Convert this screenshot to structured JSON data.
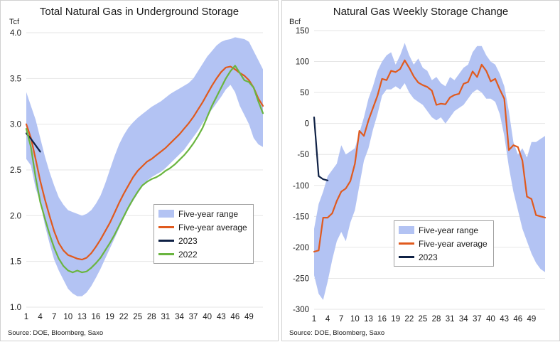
{
  "source_text": "Source: DOE, Bloomberg, Saxo",
  "colors": {
    "band": "#b3c3f3",
    "average": "#e05a1e",
    "y2023": "#0f2145",
    "y2022": "#6ab540",
    "grid": "#e6e6e6"
  },
  "chart_data": [
    {
      "type": "line",
      "title": "Total Natural Gas in Underground Storage",
      "ylabel": "Tcf",
      "ylim": [
        1.0,
        4.0
      ],
      "yticks": [
        "1.0",
        "1.5",
        "2.0",
        "2.5",
        "3.0",
        "3.5",
        "4.0"
      ],
      "xlim": [
        1,
        52
      ],
      "xticks": [
        "1",
        "4",
        "7",
        "10",
        "13",
        "16",
        "19",
        "22",
        "25",
        "28",
        "31",
        "34",
        "37",
        "40",
        "43",
        "46",
        "49"
      ],
      "grid": true,
      "legend_position": "lower-right",
      "series": [
        {
          "name": "Five-year range",
          "kind": "band",
          "x": [
            1,
            2,
            3,
            4,
            5,
            6,
            7,
            8,
            9,
            10,
            11,
            12,
            13,
            14,
            15,
            16,
            17,
            18,
            19,
            20,
            21,
            22,
            23,
            24,
            25,
            26,
            27,
            28,
            29,
            30,
            31,
            32,
            33,
            34,
            35,
            36,
            37,
            38,
            39,
            40,
            41,
            42,
            43,
            44,
            45,
            46,
            47,
            48,
            49,
            50,
            51,
            52
          ],
          "lower": [
            2.62,
            2.55,
            2.3,
            2.15,
            1.9,
            1.7,
            1.52,
            1.4,
            1.3,
            1.2,
            1.15,
            1.12,
            1.12,
            1.16,
            1.23,
            1.32,
            1.42,
            1.53,
            1.64,
            1.75,
            1.86,
            1.97,
            2.07,
            2.16,
            2.24,
            2.32,
            2.38,
            2.42,
            2.45,
            2.48,
            2.52,
            2.57,
            2.62,
            2.67,
            2.72,
            2.79,
            2.86,
            2.93,
            3.01,
            3.09,
            3.16,
            3.23,
            3.3,
            3.38,
            3.43,
            3.35,
            3.2,
            3.1,
            3.0,
            2.85,
            2.78,
            2.75
          ],
          "upper": [
            3.35,
            3.2,
            3.05,
            2.85,
            2.65,
            2.48,
            2.33,
            2.2,
            2.12,
            2.06,
            2.04,
            2.02,
            2.0,
            2.02,
            2.06,
            2.13,
            2.22,
            2.35,
            2.5,
            2.65,
            2.78,
            2.88,
            2.96,
            3.02,
            3.07,
            3.11,
            3.15,
            3.19,
            3.22,
            3.25,
            3.29,
            3.33,
            3.36,
            3.39,
            3.42,
            3.45,
            3.5,
            3.58,
            3.66,
            3.74,
            3.8,
            3.86,
            3.9,
            3.92,
            3.93,
            3.95,
            3.94,
            3.93,
            3.9,
            3.8,
            3.7,
            3.6
          ]
        },
        {
          "name": "Five-year average",
          "kind": "line",
          "x": [
            1,
            2,
            3,
            4,
            5,
            6,
            7,
            8,
            9,
            10,
            11,
            12,
            13,
            14,
            15,
            16,
            17,
            18,
            19,
            20,
            21,
            22,
            23,
            24,
            25,
            26,
            27,
            28,
            29,
            30,
            31,
            32,
            33,
            34,
            35,
            36,
            37,
            38,
            39,
            40,
            41,
            42,
            43,
            44,
            45,
            46,
            47,
            48,
            49,
            50,
            51,
            52
          ],
          "values": [
            3.0,
            2.85,
            2.62,
            2.38,
            2.18,
            2.0,
            1.83,
            1.7,
            1.62,
            1.57,
            1.55,
            1.53,
            1.52,
            1.54,
            1.59,
            1.66,
            1.74,
            1.83,
            1.92,
            2.03,
            2.14,
            2.24,
            2.33,
            2.42,
            2.49,
            2.54,
            2.59,
            2.62,
            2.66,
            2.7,
            2.74,
            2.79,
            2.84,
            2.89,
            2.95,
            3.01,
            3.08,
            3.16,
            3.24,
            3.33,
            3.42,
            3.5,
            3.57,
            3.62,
            3.63,
            3.6,
            3.56,
            3.53,
            3.48,
            3.4,
            3.28,
            3.2
          ]
        },
        {
          "name": "2023",
          "kind": "line",
          "x": [
            1,
            2,
            3,
            4
          ],
          "values": [
            2.9,
            2.84,
            2.77,
            2.7
          ]
        },
        {
          "name": "2022",
          "kind": "line",
          "x": [
            1,
            2,
            3,
            4,
            5,
            6,
            7,
            8,
            9,
            10,
            11,
            12,
            13,
            14,
            15,
            16,
            17,
            18,
            19,
            20,
            21,
            22,
            23,
            24,
            25,
            26,
            27,
            28,
            29,
            30,
            31,
            32,
            33,
            34,
            35,
            36,
            37,
            38,
            39,
            40,
            41,
            42,
            43,
            44,
            45,
            46,
            47,
            48,
            49,
            50,
            51,
            52
          ],
          "values": [
            2.95,
            2.75,
            2.42,
            2.15,
            1.97,
            1.8,
            1.65,
            1.53,
            1.45,
            1.4,
            1.38,
            1.4,
            1.38,
            1.39,
            1.43,
            1.48,
            1.54,
            1.62,
            1.7,
            1.79,
            1.89,
            1.99,
            2.09,
            2.18,
            2.26,
            2.33,
            2.37,
            2.4,
            2.42,
            2.45,
            2.49,
            2.52,
            2.56,
            2.61,
            2.66,
            2.72,
            2.79,
            2.87,
            2.96,
            3.08,
            3.2,
            3.3,
            3.4,
            3.5,
            3.58,
            3.64,
            3.56,
            3.48,
            3.46,
            3.4,
            3.25,
            3.12
          ]
        }
      ]
    },
    {
      "type": "line",
      "title": "Natural Gas Weekly Storage Change",
      "ylabel": "Bcf",
      "ylim": [
        -300,
        150
      ],
      "yticks": [
        "-300",
        "-250",
        "-200",
        "-150",
        "-100",
        "-50",
        "0",
        "50",
        "100",
        "150"
      ],
      "xlim": [
        1,
        52
      ],
      "xticks": [
        "1",
        "4",
        "7",
        "10",
        "13",
        "16",
        "19",
        "22",
        "25",
        "28",
        "31",
        "34",
        "37",
        "40",
        "43",
        "46",
        "49"
      ],
      "grid": true,
      "legend_position": "lower-center",
      "series": [
        {
          "name": "Five-year range",
          "kind": "band",
          "x": [
            1,
            2,
            3,
            4,
            5,
            6,
            7,
            8,
            9,
            10,
            11,
            12,
            13,
            14,
            15,
            16,
            17,
            18,
            19,
            20,
            21,
            22,
            23,
            24,
            25,
            26,
            27,
            28,
            29,
            30,
            31,
            32,
            33,
            34,
            35,
            36,
            37,
            38,
            39,
            40,
            41,
            42,
            43,
            44,
            45,
            46,
            47,
            48,
            49,
            50,
            51,
            52
          ],
          "lower": [
            -245,
            -275,
            -285,
            -255,
            -220,
            -190,
            -175,
            -190,
            -160,
            -140,
            -100,
            -60,
            -40,
            -10,
            15,
            45,
            55,
            55,
            60,
            55,
            65,
            50,
            40,
            35,
            30,
            20,
            10,
            5,
            10,
            0,
            10,
            20,
            25,
            30,
            40,
            50,
            55,
            50,
            40,
            40,
            35,
            15,
            -20,
            -70,
            -110,
            -140,
            -170,
            -190,
            -210,
            -225,
            -235,
            -240
          ],
          "upper": [
            -170,
            -130,
            -110,
            -85,
            -75,
            -65,
            -35,
            -50,
            -45,
            -40,
            -15,
            10,
            40,
            60,
            85,
            100,
            110,
            115,
            95,
            110,
            130,
            110,
            95,
            105,
            90,
            85,
            70,
            75,
            65,
            60,
            75,
            70,
            80,
            90,
            95,
            115,
            125,
            125,
            110,
            100,
            95,
            80,
            60,
            20,
            -30,
            -50,
            -40,
            -55,
            -30,
            -30,
            -25,
            -20
          ]
        },
        {
          "name": "Five-year average",
          "kind": "line",
          "x": [
            1,
            2,
            3,
            4,
            5,
            6,
            7,
            8,
            9,
            10,
            11,
            12,
            13,
            14,
            15,
            16,
            17,
            18,
            19,
            20,
            21,
            22,
            23,
            24,
            25,
            26,
            27,
            28,
            29,
            30,
            31,
            32,
            33,
            34,
            35,
            36,
            37,
            38,
            39,
            40,
            41,
            42,
            43,
            44,
            45,
            46,
            47,
            48,
            49,
            50,
            51,
            52
          ],
          "values": [
            -207,
            -205,
            -152,
            -152,
            -145,
            -125,
            -110,
            -105,
            -93,
            -65,
            -12,
            -20,
            5,
            25,
            45,
            72,
            70,
            85,
            83,
            88,
            102,
            90,
            76,
            66,
            62,
            59,
            53,
            30,
            32,
            31,
            42,
            46,
            48,
            64,
            67,
            84,
            75,
            95,
            85,
            68,
            72,
            55,
            40,
            -43,
            -35,
            -38,
            -60,
            -118,
            -122,
            -148,
            -150,
            -152
          ]
        },
        {
          "name": "2023",
          "kind": "line",
          "x": [
            1,
            2,
            3,
            4
          ],
          "values": [
            10,
            -85,
            -90,
            -92
          ]
        }
      ]
    }
  ]
}
